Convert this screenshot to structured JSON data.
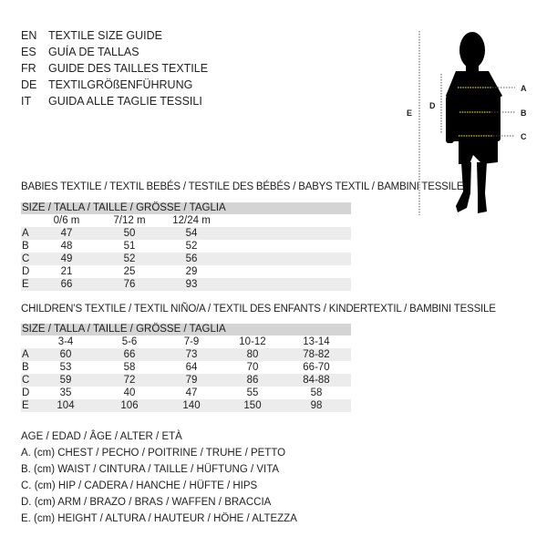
{
  "titles": [
    {
      "code": "EN",
      "text": "TEXTILE SIZE GUIDE"
    },
    {
      "code": "ES",
      "text": "GUÍA DE TALLAS"
    },
    {
      "code": "FR",
      "text": "GUIDE DES TAILLES TEXTILE"
    },
    {
      "code": "DE",
      "text": "TEXTILGRÖßENFÜHRUNG"
    },
    {
      "code": "IT",
      "text": "GUIDA ALLE TAGLIE TESSILI"
    }
  ],
  "figure": {
    "labels": {
      "a": "A",
      "b": "B",
      "c": "C",
      "d": "D",
      "e": "E"
    },
    "accent": "#e8d200"
  },
  "babies": {
    "title": "BABIES TEXTILE / TEXTIL BEBÉS / TESTILE DES BÉBÉS / BABYS TEXTIL / BAMBINI TESSILE",
    "header": "SIZE / TALLA / TAILLE / GRÖSSE / TAGLIA",
    "sizes": [
      "0/6 m",
      "7/12 m",
      "12/24 m"
    ],
    "rows": [
      {
        "label": "A",
        "values": [
          "47",
          "50",
          "54"
        ]
      },
      {
        "label": "B",
        "values": [
          "48",
          "51",
          "52"
        ]
      },
      {
        "label": "C",
        "values": [
          "49",
          "52",
          "56"
        ]
      },
      {
        "label": "D",
        "values": [
          "21",
          "25",
          "29"
        ]
      },
      {
        "label": "E",
        "values": [
          "66",
          "76",
          "93"
        ]
      }
    ]
  },
  "children": {
    "title": "CHILDREN’S TEXTILE / TEXTIL NIÑO/A / TEXTIL DES ENFANTS / KINDERTEXTIL / BAMBINI TESSILE",
    "header": "SIZE / TALLA / TAILLE / GRÖSSE / TAGLIA",
    "sizes": [
      "3-4",
      "5-6",
      "7-9",
      "10-12",
      "13-14"
    ],
    "rows": [
      {
        "label": "A",
        "values": [
          "60",
          "66",
          "73",
          "80",
          "78-82"
        ]
      },
      {
        "label": "B",
        "values": [
          "53",
          "58",
          "64",
          "70",
          "66-70"
        ]
      },
      {
        "label": "C",
        "values": [
          "59",
          "72",
          "79",
          "86",
          "84-88"
        ]
      },
      {
        "label": "D",
        "values": [
          "35",
          "40",
          "47",
          "55",
          "58"
        ]
      },
      {
        "label": "E",
        "values": [
          "104",
          "106",
          "140",
          "150",
          "98"
        ]
      }
    ]
  },
  "legend": [
    "AGE / EDAD / ÂGE / ALTER / ETÀ",
    "A. (cm) CHEST / PECHO / POITRINE / TRUHE / PETTO",
    "B. (cm) WAIST / CINTURA / TAILLE / HÜFTUNG / VITA",
    "C. (cm) HIP / CADERA / HANCHE / HÜFTE / HIPS",
    "D. (cm) ARM / BRAZO / BRAS / WAFFEN / BRACCIA",
    "E. (cm) HEIGHT / ALTURA / HAUTEUR / HÖHE / ALTEZZA"
  ]
}
